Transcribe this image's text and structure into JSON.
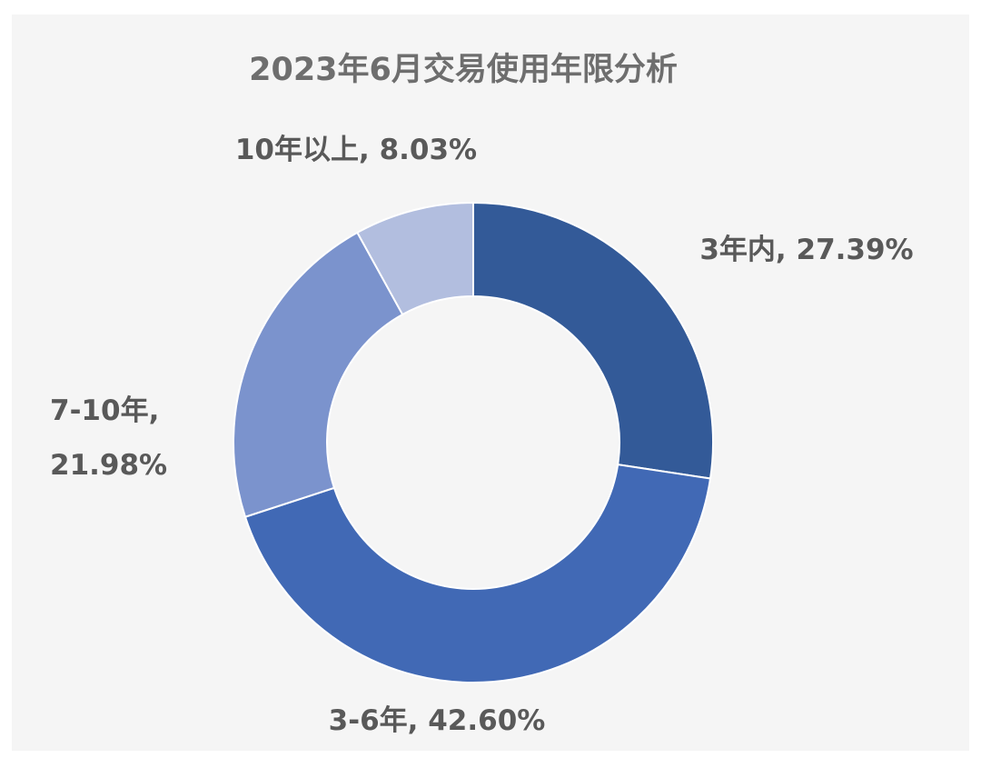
{
  "chart_data": {
    "type": "pie",
    "donut": true,
    "title": "2023年6月交易使用年限分析",
    "legend": "none",
    "categories": [
      "3年内",
      "3-6年",
      "7-10年",
      "10年以上"
    ],
    "values": [
      27.39,
      42.6,
      21.98,
      8.03
    ],
    "value_labels": [
      "27.39%",
      "42.60%",
      "21.98%",
      "8.03%"
    ],
    "colors": [
      "#335a98",
      "#4169b5",
      "#7b93cd",
      "#b2bedf"
    ]
  }
}
